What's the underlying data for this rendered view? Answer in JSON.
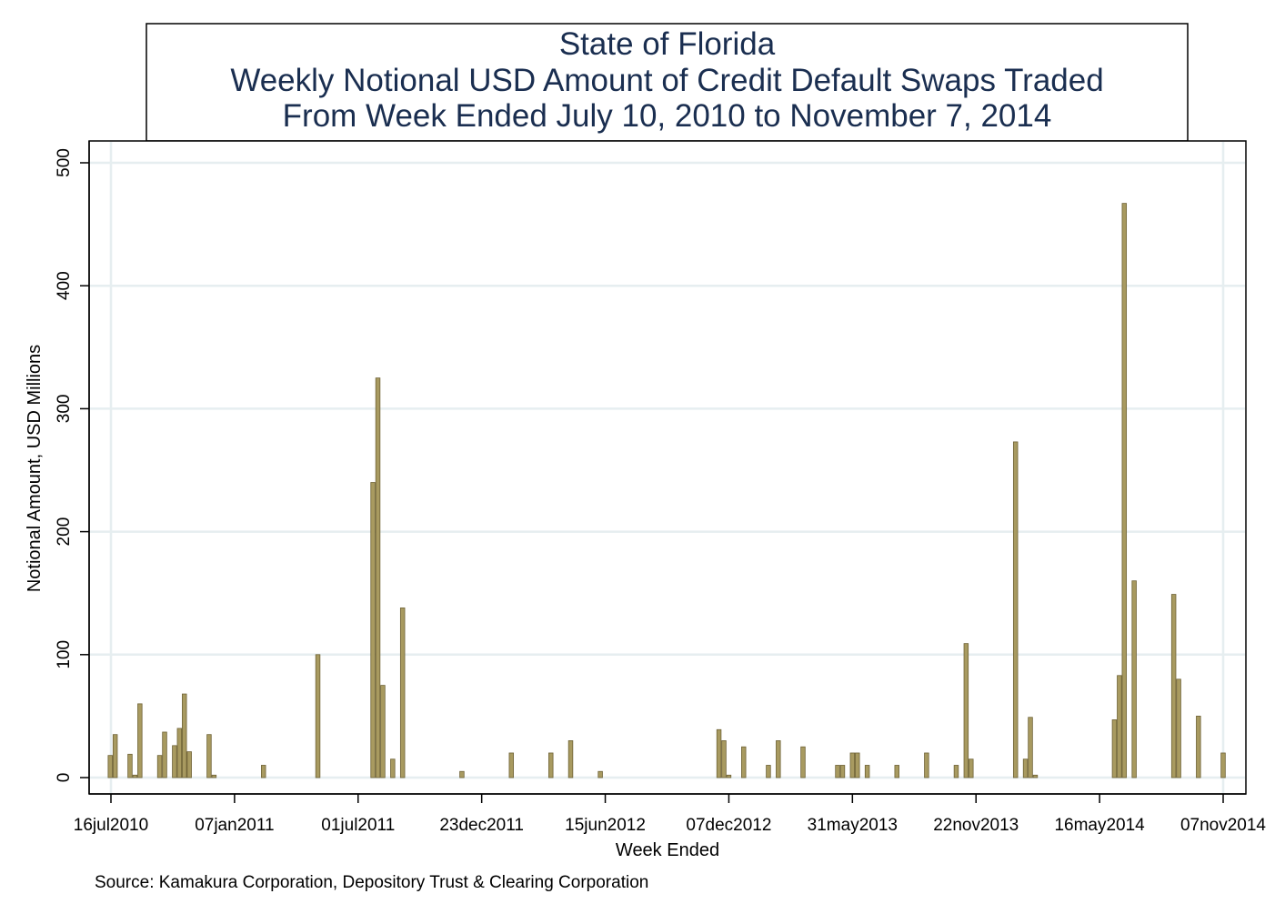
{
  "chart_data": {
    "type": "bar",
    "title_lines": [
      "State of Florida",
      "Weekly Notional USD Amount of Credit Default Swaps Traded",
      "From Week Ended July 10, 2010 to November 7, 2014"
    ],
    "xlabel": "Week Ended",
    "ylabel": "Notional Amount, USD Millions",
    "source": "Source: Kamakura Corporation, Depository Trust & Clearing Corporation",
    "ylim": [
      0,
      500
    ],
    "yticks": [
      0,
      100,
      200,
      300,
      400,
      500
    ],
    "x_range_days": [
      -10,
      1610
    ],
    "xticks": [
      {
        "label": "16jul2010",
        "day": 0
      },
      {
        "label": "07jan2011",
        "day": 175
      },
      {
        "label": "01jul2011",
        "day": 350
      },
      {
        "label": "23dec2011",
        "day": 525
      },
      {
        "label": "15jun2012",
        "day": 700
      },
      {
        "label": "07dec2012",
        "day": 875
      },
      {
        "label": "31may2013",
        "day": 1050
      },
      {
        "label": "22nov2013",
        "day": 1225
      },
      {
        "label": "16may2014",
        "day": 1400
      },
      {
        "label": "07nov2014",
        "day": 1575
      }
    ],
    "series": [
      {
        "name": "Notional Amount",
        "color": "#a89a60",
        "stroke": "#6e6236",
        "bar_width_days": 6,
        "points": [
          {
            "day": -1,
            "value": 18
          },
          {
            "day": 6,
            "value": 35
          },
          {
            "day": 27,
            "value": 19
          },
          {
            "day": 34,
            "value": 2
          },
          {
            "day": 41,
            "value": 60
          },
          {
            "day": 69,
            "value": 18
          },
          {
            "day": 76,
            "value": 37
          },
          {
            "day": 90,
            "value": 26
          },
          {
            "day": 97,
            "value": 40
          },
          {
            "day": 104,
            "value": 68
          },
          {
            "day": 111,
            "value": 21
          },
          {
            "day": 139,
            "value": 35
          },
          {
            "day": 146,
            "value": 2
          },
          {
            "day": 216,
            "value": 10
          },
          {
            "day": 293,
            "value": 100
          },
          {
            "day": 371,
            "value": 240
          },
          {
            "day": 378,
            "value": 325
          },
          {
            "day": 385,
            "value": 75
          },
          {
            "day": 399,
            "value": 15
          },
          {
            "day": 413,
            "value": 138
          },
          {
            "day": 497,
            "value": 5
          },
          {
            "day": 567,
            "value": 20
          },
          {
            "day": 623,
            "value": 20
          },
          {
            "day": 651,
            "value": 30
          },
          {
            "day": 693,
            "value": 5
          },
          {
            "day": 861,
            "value": 39
          },
          {
            "day": 868,
            "value": 30
          },
          {
            "day": 875,
            "value": 2
          },
          {
            "day": 896,
            "value": 25
          },
          {
            "day": 931,
            "value": 10
          },
          {
            "day": 945,
            "value": 30
          },
          {
            "day": 980,
            "value": 25
          },
          {
            "day": 1029,
            "value": 10
          },
          {
            "day": 1036,
            "value": 10
          },
          {
            "day": 1050,
            "value": 20
          },
          {
            "day": 1057,
            "value": 20
          },
          {
            "day": 1071,
            "value": 10
          },
          {
            "day": 1113,
            "value": 10
          },
          {
            "day": 1155,
            "value": 20
          },
          {
            "day": 1197,
            "value": 10
          },
          {
            "day": 1211,
            "value": 109
          },
          {
            "day": 1218,
            "value": 15
          },
          {
            "day": 1281,
            "value": 273
          },
          {
            "day": 1295,
            "value": 15
          },
          {
            "day": 1302,
            "value": 49
          },
          {
            "day": 1309,
            "value": 2
          },
          {
            "day": 1421,
            "value": 47
          },
          {
            "day": 1428,
            "value": 83
          },
          {
            "day": 1435,
            "value": 467
          },
          {
            "day": 1449,
            "value": 160
          },
          {
            "day": 1505,
            "value": 149
          },
          {
            "day": 1512,
            "value": 80
          },
          {
            "day": 1540,
            "value": 50
          },
          {
            "day": 1575,
            "value": 20
          }
        ]
      }
    ]
  }
}
